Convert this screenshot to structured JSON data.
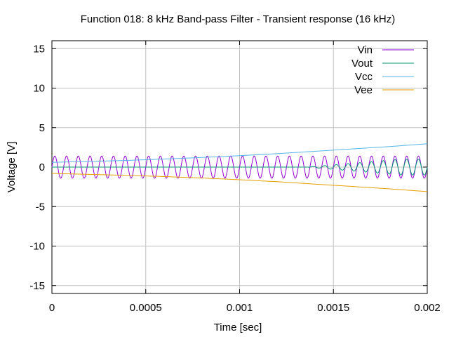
{
  "chart_data": {
    "type": "line",
    "title": "Function 018: 8 kHz Band-pass Filter - Transient response (16 kHz)",
    "xlabel": "Time [sec]",
    "ylabel": "Voltage [V]",
    "xlim": [
      0,
      0.002
    ],
    "ylim": [
      -16,
      16
    ],
    "xticks": [
      0,
      0.0005,
      0.001,
      0.0015,
      0.002
    ],
    "xtick_labels": [
      "0",
      "0.0005",
      "0.001",
      "0.0015",
      "0.002"
    ],
    "yticks": [
      -15,
      -10,
      -5,
      0,
      5,
      10,
      15
    ],
    "ytick_labels": [
      "-15",
      "-10",
      "-5",
      "0",
      "5",
      "10",
      "15"
    ],
    "grid": true,
    "legend_position": "top-right",
    "series": [
      {
        "name": "Vin",
        "color": "#9400d3",
        "kind": "sine",
        "frequency_hz": 16000,
        "amplitude": 1.4,
        "offset": 0
      },
      {
        "name": "Vout",
        "color": "#009e73",
        "kind": "growing-sine",
        "frequency_hz": 16000,
        "t_start": 0.00136,
        "amplitude_end": 1.0,
        "offset": 0
      },
      {
        "name": "Vcc",
        "color": "#56b4e9",
        "x": [
          0,
          0.0002,
          0.0004,
          0.0006,
          0.0008,
          0.001,
          0.0012,
          0.0014,
          0.0016,
          0.0018,
          0.002
        ],
        "y": [
          0.6,
          0.72,
          0.85,
          1.02,
          1.22,
          1.45,
          1.7,
          2.0,
          2.3,
          2.6,
          2.95
        ]
      },
      {
        "name": "Vee",
        "color": "#e69f00",
        "x": [
          0,
          0.0002,
          0.0004,
          0.0006,
          0.0008,
          0.001,
          0.0012,
          0.0014,
          0.0016,
          0.0018,
          0.002
        ],
        "y": [
          -0.8,
          -0.92,
          -1.05,
          -1.2,
          -1.38,
          -1.6,
          -1.85,
          -2.15,
          -2.45,
          -2.75,
          -3.1
        ]
      }
    ]
  }
}
